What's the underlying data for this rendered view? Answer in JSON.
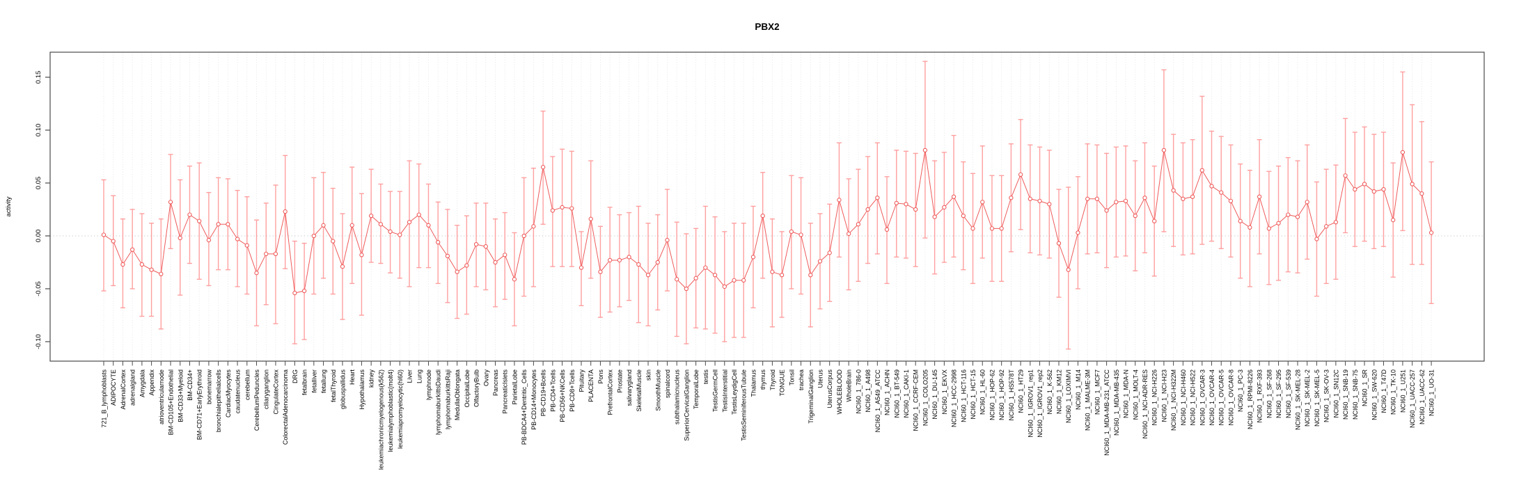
{
  "title": "PBX2",
  "y_axis": {
    "label": "activity",
    "tick_labels": [
      "0.15",
      "0.10",
      "0.05",
      "0.00",
      "-0.05",
      "-0.10"
    ],
    "tick_values": [
      0.15,
      0.1,
      0.05,
      0.0,
      -0.05,
      -0.1
    ]
  },
  "colors": {
    "series": "#ef5a5a",
    "error_bar": "#ff9f9f",
    "grid": "#e0e0e0",
    "zero_line": "#cfcfcf",
    "axis": "#4a4a4a",
    "background": "#ffffff"
  },
  "chart_data": {
    "type": "line",
    "title": "PBX2",
    "xlabel": "",
    "ylabel": "activity",
    "ylim": [
      -0.118,
      0.175
    ],
    "grid": "vertical-dotted",
    "zero_line": true,
    "error_bars": true,
    "legend": "none",
    "categories": [
      "721_B_lymphoblasts",
      "ADIPOCYTE",
      "AdrenalCortex",
      "adrenalgland",
      "Amygdala",
      "Appendix",
      "atrioventricularnode",
      "BM-CD105+Endothelial",
      "BM-CD33+Myeloid",
      "BM-CD34+",
      "BM-CD71+EarlyErythroid",
      "bonemarrow",
      "bronchialepithelialcells",
      "CardiacMyocytes",
      "caudatenucleus",
      "cerebellum",
      "CerebellumPeduncles",
      "ciliaryganglion",
      "CingulateCortex",
      "ColorectalAdenocarcinoma",
      "DRG",
      "fetalbrain",
      "fetalliver",
      "fetallung",
      "fetalThyroid",
      "globuspallidus",
      "Heart",
      "Hypothalamus",
      "kidney",
      "leukemiachronicmyelogenous(k562)",
      "leukemialymphoblastic(molt4)",
      "leukemiapromyelocytic(hl60)",
      "Liver",
      "Lung",
      "lymphnode",
      "lymphomaburkittsDaudi",
      "lymphomaburkittsRaji",
      "MedullaOblongata",
      "OccipitalLobe",
      "OlfactoryBulb",
      "Ovary",
      "Pancreas",
      "PancreaticIslets",
      "ParietalLobe",
      "PB-BDCA4+Dentritic_Cells",
      "PB-CD14+Monocytes",
      "PB-CD19+Bcells",
      "PB-CD4+Tcells",
      "PB-CD56+NKCells",
      "PB-CD8+Tcells",
      "Pituitary",
      "PLACENTA",
      "Pons",
      "PrefrontalCortex",
      "Prostate",
      "salivarygland",
      "SkeletalMuscle",
      "skin",
      "SmoothMuscle",
      "spinalcord",
      "subthalamicnucleus",
      "SuperiorCervicalGanglion",
      "TemporalLobe",
      "testis",
      "TestisGermCell",
      "TestisInterstitial",
      "TestisLeydigCell",
      "TestisSeminiferousTubule",
      "Thalamus",
      "thymus",
      "Thyroid",
      "TONGUE",
      "Tonsil",
      "trachea",
      "TrigeminalGanglion",
      "Uterus",
      "UterusCorpus",
      "WHOLEBLOOD",
      "WholeBrain",
      "NCI60_1_786-0",
      "NCI60_1_A498",
      "NCI60_1_A549_ATCC",
      "NCI60_1_ACHN",
      "NCI60_1_BT-549",
      "NCI60_1_CAKI-1",
      "NCI60_1_CCRF-CEM",
      "NCI60_1_COLO205",
      "NCI60_1_DU-145",
      "NCI60_1_EKVX",
      "NCI60_1_HCC-2998",
      "NCI60_1_HCT-116",
      "NCI60_1_HCT-15",
      "NCI60_1_HL-60",
      "NCI60_1_HOP-62",
      "NCI60_1_HOP-92",
      "NCI60_1_HS578T",
      "NCI60_1_HT29",
      "NCI60_1_IGROV1_rep1",
      "NCI60_1_IGROV1_rep2",
      "NCI60_1_K-562",
      "NCI60_1_KM12",
      "NCI60_1_LOXIMVI",
      "NCI60_1_M14",
      "NCI60_1_MALME-3M",
      "NCI60_1_MCF7",
      "NCI60_1_MDA-MB-231_ATCC",
      "NCI60_1_MDA-MB-435",
      "NCI60_1_MDA-N",
      "NCI60_1_MOLT-4",
      "NCI60_1_NCI-ADR-RES",
      "NCI60_1_NCI-H226",
      "NCI60_1_NCI-H23",
      "NCI60_1_NCI-H322M",
      "NCI60_1_NCI-H460",
      "NCI60_1_NCI-H522",
      "NCI60_1_OVCAR-3",
      "NCI60_1_OVCAR-4",
      "NCI60_1_OVCAR-5",
      "NCI60_1_OVCAR-8",
      "NCI60_1_PC-3",
      "NCI60_1_RPMI-8226",
      "NCI60_1_RXF-393",
      "NCI60_1_SF-268",
      "NCI60_1_SF-295",
      "NCI60_1_SF-539",
      "NCI60_1_SK-MEL-28",
      "NCI60_1_SK-MEL-2",
      "NCI60_1_SK-MEL-5",
      "NCI60_1_SK-OV-3",
      "NCI60_1_SN12C",
      "NCI60_1_SNB-19",
      "NCI60_1_SNB-75",
      "NCI60_1_SR",
      "NCI60_1_SW-620",
      "NCI60_1_T47D",
      "NCI60_1_TK-10",
      "NCI60_1_U251",
      "NCI60_1_UACC-257",
      "NCI60_1_UACC-62",
      "NCI60_1_UO-31"
    ],
    "series": [
      {
        "name": "activity",
        "values": [
          0.001,
          -0.005,
          -0.027,
          -0.013,
          -0.027,
          -0.032,
          -0.036,
          0.032,
          -0.002,
          0.02,
          0.014,
          -0.004,
          0.011,
          0.011,
          -0.003,
          -0.009,
          -0.035,
          -0.017,
          -0.017,
          0.023,
          -0.054,
          -0.052,
          0.0,
          0.01,
          -0.005,
          -0.029,
          0.01,
          -0.018,
          0.019,
          0.011,
          0.004,
          0.001,
          0.013,
          0.02,
          0.01,
          -0.006,
          -0.019,
          -0.034,
          -0.028,
          -0.008,
          -0.01,
          -0.025,
          -0.018,
          -0.041,
          0.0,
          0.009,
          0.065,
          0.024,
          0.027,
          0.026,
          -0.03,
          0.016,
          -0.034,
          -0.023,
          -0.023,
          -0.02,
          -0.027,
          -0.037,
          -0.025,
          -0.004,
          -0.041,
          -0.05,
          -0.04,
          -0.03,
          -0.037,
          -0.048,
          -0.042,
          -0.042,
          -0.02,
          0.019,
          -0.034,
          -0.037,
          0.004,
          0.001,
          -0.037,
          -0.024,
          -0.016,
          0.034,
          0.002,
          0.011,
          0.025,
          0.036,
          0.006,
          0.031,
          0.03,
          0.025,
          0.081,
          0.018,
          0.027,
          0.037,
          0.019,
          0.007,
          0.032,
          0.007,
          0.007,
          0.036,
          0.058,
          0.035,
          0.033,
          0.03,
          -0.007,
          -0.032,
          0.003,
          0.035,
          0.035,
          0.024,
          0.032,
          0.033,
          0.019,
          0.036,
          0.014,
          0.081,
          0.043,
          0.035,
          0.037,
          0.062,
          0.047,
          0.041,
          0.033,
          0.014,
          0.008,
          0.037,
          0.007,
          0.012,
          0.02,
          0.018,
          0.032,
          -0.003,
          0.009,
          0.013,
          0.057,
          0.044,
          0.049,
          0.042,
          0.044,
          0.015,
          0.079,
          0.049,
          0.04,
          0.003
        ]
      }
    ],
    "error_low": [
      -0.052,
      -0.047,
      -0.068,
      -0.05,
      -0.076,
      -0.076,
      -0.088,
      -0.012,
      -0.056,
      -0.026,
      -0.041,
      -0.047,
      -0.032,
      -0.032,
      -0.048,
      -0.055,
      -0.085,
      -0.065,
      -0.083,
      -0.031,
      -0.102,
      -0.098,
      -0.055,
      -0.04,
      -0.055,
      -0.079,
      -0.045,
      -0.075,
      -0.025,
      -0.026,
      -0.035,
      -0.04,
      -0.048,
      -0.03,
      -0.03,
      -0.045,
      -0.063,
      -0.078,
      -0.074,
      -0.048,
      -0.051,
      -0.067,
      -0.06,
      -0.085,
      -0.057,
      -0.048,
      0.011,
      -0.029,
      -0.029,
      -0.029,
      -0.066,
      -0.04,
      -0.077,
      -0.072,
      -0.067,
      -0.061,
      -0.082,
      -0.085,
      -0.07,
      -0.052,
      -0.095,
      -0.102,
      -0.087,
      -0.088,
      -0.092,
      -0.1,
      -0.096,
      -0.096,
      -0.068,
      -0.04,
      -0.086,
      -0.077,
      -0.05,
      -0.055,
      -0.086,
      -0.069,
      -0.062,
      -0.02,
      -0.051,
      -0.043,
      -0.026,
      -0.017,
      -0.045,
      -0.02,
      -0.021,
      -0.029,
      -0.002,
      -0.036,
      -0.025,
      -0.02,
      -0.032,
      -0.045,
      -0.021,
      -0.043,
      -0.043,
      -0.015,
      0.006,
      -0.016,
      -0.018,
      -0.021,
      -0.058,
      -0.107,
      -0.05,
      -0.017,
      -0.016,
      -0.03,
      -0.02,
      -0.019,
      -0.033,
      -0.016,
      -0.038,
      0.004,
      -0.01,
      -0.018,
      -0.017,
      -0.008,
      -0.005,
      -0.012,
      -0.02,
      -0.04,
      -0.048,
      -0.017,
      -0.046,
      -0.042,
      -0.034,
      -0.035,
      -0.022,
      -0.057,
      -0.045,
      -0.041,
      0.003,
      -0.01,
      -0.005,
      -0.012,
      -0.01,
      -0.039,
      0.005,
      -0.027,
      -0.027,
      -0.064
    ],
    "error_high": [
      0.053,
      0.038,
      0.016,
      0.025,
      0.021,
      0.012,
      0.016,
      0.077,
      0.053,
      0.066,
      0.069,
      0.041,
      0.055,
      0.054,
      0.043,
      0.037,
      0.015,
      0.031,
      0.048,
      0.076,
      -0.005,
      -0.007,
      0.055,
      0.06,
      0.045,
      0.021,
      0.065,
      0.04,
      0.063,
      0.049,
      0.042,
      0.042,
      0.071,
      0.068,
      0.049,
      0.032,
      0.025,
      0.01,
      0.019,
      0.031,
      0.031,
      0.016,
      0.022,
      0.003,
      0.055,
      0.064,
      0.118,
      0.075,
      0.082,
      0.08,
      0.004,
      0.071,
      0.009,
      0.027,
      0.02,
      0.022,
      0.028,
      0.012,
      0.02,
      0.044,
      0.013,
      0.002,
      0.007,
      0.028,
      0.018,
      0.004,
      0.012,
      0.012,
      0.028,
      0.06,
      0.016,
      0.004,
      0.057,
      0.055,
      0.012,
      0.021,
      0.03,
      0.088,
      0.054,
      0.063,
      0.075,
      0.088,
      0.056,
      0.081,
      0.08,
      0.078,
      0.165,
      0.071,
      0.079,
      0.095,
      0.07,
      0.059,
      0.085,
      0.057,
      0.057,
      0.087,
      0.11,
      0.086,
      0.084,
      0.081,
      0.044,
      0.046,
      0.056,
      0.087,
      0.086,
      0.078,
      0.084,
      0.085,
      0.071,
      0.088,
      0.066,
      0.157,
      0.096,
      0.088,
      0.091,
      0.132,
      0.099,
      0.094,
      0.086,
      0.068,
      0.062,
      0.091,
      0.061,
      0.066,
      0.074,
      0.071,
      0.086,
      0.051,
      0.063,
      0.067,
      0.111,
      0.098,
      0.103,
      0.096,
      0.098,
      0.069,
      0.155,
      0.124,
      0.108,
      0.07
    ]
  }
}
